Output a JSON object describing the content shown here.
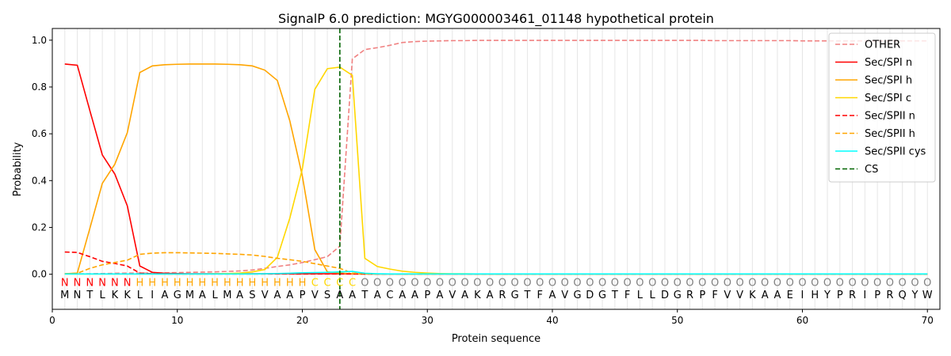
{
  "chart_data": {
    "type": "line",
    "title": "SignalP 6.0 prediction: MGYG000003461_01148 hypothetical protein",
    "xlabel": "Protein sequence",
    "ylabel": "Probability",
    "xlim": [
      0,
      71
    ],
    "ylim": [
      -0.15,
      1.05
    ],
    "xticks": [
      "0",
      "10",
      "20",
      "30",
      "40",
      "50",
      "60",
      "70"
    ],
    "yticks": [
      "0.0",
      "0.2",
      "0.4",
      "0.6",
      "0.8",
      "1.0"
    ],
    "grid": "vertical lines at each residue",
    "legend_position": "top-right",
    "sequence": "MNTLKKLIAGMALMASVAAPVSAATACAAPAVAKARGTFAVGDGTFLLDGRPFVVKAAEIHYPRIPRQYW",
    "region_labels": "NNNNNNHHHHHHHHHHHHHHCCCCOOOOOOOOOOOOOOOOOOOOOOOOOOOOOOOOOOOOOOOOOOOOOOOO",
    "region_colors": {
      "N": "#ff0000",
      "H": "#ffa500",
      "C": "#ffd700",
      "O": "#808080"
    },
    "cs_position": 23,
    "series": [
      {
        "name": "OTHER",
        "color": "#f08080",
        "dash": "dashed",
        "values": [
          0.002,
          0.002,
          0.002,
          0.003,
          0.004,
          0.005,
          0.005,
          0.005,
          0.006,
          0.007,
          0.008,
          0.009,
          0.01,
          0.012,
          0.014,
          0.018,
          0.025,
          0.033,
          0.04,
          0.05,
          0.062,
          0.075,
          0.12,
          0.92,
          0.96,
          0.968,
          0.978,
          0.99,
          0.994,
          0.996,
          0.997,
          0.998,
          0.998,
          0.999,
          0.999,
          0.999,
          0.999,
          0.999,
          0.999,
          0.999,
          0.999,
          0.999,
          0.999,
          0.999,
          0.999,
          0.999,
          0.999,
          0.999,
          0.999,
          0.999,
          0.999,
          0.999,
          0.998,
          0.998,
          0.998,
          0.998,
          0.998,
          0.998,
          0.998,
          0.997,
          0.997,
          0.997,
          0.997,
          0.997,
          0.997,
          0.997,
          0.997,
          0.997,
          0.997,
          0.997
        ]
      },
      {
        "name": "Sec/SPI n",
        "color": "#ff0000",
        "dash": "solid",
        "values": [
          0.898,
          0.893,
          0.7,
          0.51,
          0.428,
          0.292,
          0.035,
          0.008,
          0.004,
          0.003,
          0.002,
          0.002,
          0.002,
          0.002,
          0.002,
          0.002,
          0.002,
          0.002,
          0.002,
          0.002,
          0.002,
          0.002,
          0.002,
          0.001,
          0.001,
          0.001,
          0.001,
          0.001,
          0.001,
          0.001,
          0.001,
          0.001,
          0.001,
          0.001,
          0.001,
          0.001,
          0.001,
          0.001,
          0.001,
          0.001,
          0.001,
          0.001,
          0.001,
          0.001,
          0.001,
          0.001,
          0.001,
          0.001,
          0.001,
          0.001,
          0.001,
          0.001,
          0.001,
          0.001,
          0.001,
          0.001,
          0.001,
          0.001,
          0.001,
          0.001,
          0.001,
          0.001,
          0.001,
          0.001,
          0.001,
          0.001,
          0.001,
          0.001,
          0.001,
          0.001
        ]
      },
      {
        "name": "Sec/SPI h",
        "color": "#ffa500",
        "dash": "solid",
        "values": [
          0.002,
          0.005,
          0.195,
          0.388,
          0.47,
          0.605,
          0.862,
          0.89,
          0.895,
          0.897,
          0.898,
          0.898,
          0.898,
          0.897,
          0.895,
          0.89,
          0.872,
          0.828,
          0.655,
          0.42,
          0.105,
          0.01,
          0.005,
          0.002,
          0.001,
          0.001,
          0.001,
          0.001,
          0.001,
          0.001,
          0.001,
          0.001,
          0.001,
          0.001,
          0.001,
          0.001,
          0.001,
          0.001,
          0.001,
          0.001,
          0.001,
          0.001,
          0.001,
          0.001,
          0.001,
          0.001,
          0.001,
          0.001,
          0.001,
          0.001,
          0.001,
          0.001,
          0.001,
          0.001,
          0.001,
          0.001,
          0.001,
          0.001,
          0.001,
          0.001,
          0.001,
          0.001,
          0.001,
          0.001,
          0.001,
          0.001,
          0.001,
          0.001,
          0.001,
          0.001
        ]
      },
      {
        "name": "Sec/SPI c",
        "color": "#ffd700",
        "dash": "solid",
        "values": [
          0.001,
          0.001,
          0.001,
          0.001,
          0.001,
          0.001,
          0.001,
          0.001,
          0.001,
          0.001,
          0.001,
          0.001,
          0.002,
          0.003,
          0.005,
          0.01,
          0.02,
          0.072,
          0.24,
          0.45,
          0.79,
          0.878,
          0.885,
          0.85,
          0.068,
          0.033,
          0.022,
          0.013,
          0.008,
          0.005,
          0.003,
          0.002,
          0.002,
          0.001,
          0.001,
          0.001,
          0.001,
          0.001,
          0.001,
          0.001,
          0.001,
          0.001,
          0.001,
          0.001,
          0.001,
          0.001,
          0.001,
          0.001,
          0.001,
          0.001,
          0.001,
          0.001,
          0.001,
          0.001,
          0.001,
          0.001,
          0.001,
          0.001,
          0.001,
          0.001,
          0.001,
          0.001,
          0.001,
          0.001,
          0.001,
          0.001,
          0.001,
          0.001,
          0.001,
          0.001
        ]
      },
      {
        "name": "Sec/SPII n",
        "color": "#ff0000",
        "dash": "dashed",
        "values": [
          0.095,
          0.093,
          0.075,
          0.055,
          0.046,
          0.035,
          0.005,
          0.002,
          0.001,
          0.001,
          0.001,
          0.001,
          0.001,
          0.001,
          0.001,
          0.001,
          0.001,
          0.001,
          0.001,
          0.001,
          0.001,
          0.001,
          0.001,
          0.001,
          0.001,
          0.001,
          0.001,
          0.001,
          0.001,
          0.001,
          0.001,
          0.001,
          0.001,
          0.001,
          0.001,
          0.001,
          0.001,
          0.001,
          0.001,
          0.001,
          0.001,
          0.001,
          0.001,
          0.001,
          0.001,
          0.001,
          0.001,
          0.001,
          0.001,
          0.001,
          0.001,
          0.001,
          0.001,
          0.001,
          0.001,
          0.001,
          0.001,
          0.001,
          0.001,
          0.001,
          0.001,
          0.001,
          0.001,
          0.001,
          0.001,
          0.001,
          0.001,
          0.001,
          0.001,
          0.001
        ]
      },
      {
        "name": "Sec/SPII h",
        "color": "#ffa500",
        "dash": "dashed",
        "values": [
          0.002,
          0.004,
          0.025,
          0.04,
          0.05,
          0.06,
          0.085,
          0.09,
          0.092,
          0.092,
          0.091,
          0.09,
          0.089,
          0.087,
          0.085,
          0.082,
          0.076,
          0.068,
          0.062,
          0.055,
          0.045,
          0.035,
          0.025,
          0.005,
          0.002,
          0.001,
          0.001,
          0.001,
          0.001,
          0.001,
          0.001,
          0.001,
          0.001,
          0.001,
          0.001,
          0.001,
          0.001,
          0.001,
          0.001,
          0.001,
          0.001,
          0.001,
          0.001,
          0.001,
          0.001,
          0.001,
          0.001,
          0.001,
          0.001,
          0.001,
          0.001,
          0.001,
          0.001,
          0.001,
          0.001,
          0.001,
          0.001,
          0.001,
          0.001,
          0.001,
          0.001,
          0.001,
          0.001,
          0.001,
          0.001,
          0.001,
          0.001,
          0.001,
          0.001,
          0.001
        ]
      },
      {
        "name": "Sec/SPII cys",
        "color": "#00ffff",
        "dash": "solid",
        "values": [
          0.001,
          0.001,
          0.001,
          0.001,
          0.001,
          0.001,
          0.001,
          0.001,
          0.001,
          0.001,
          0.001,
          0.001,
          0.001,
          0.001,
          0.001,
          0.001,
          0.002,
          0.003,
          0.004,
          0.006,
          0.007,
          0.008,
          0.01,
          0.012,
          0.004,
          0.002,
          0.001,
          0.001,
          0.001,
          0.001,
          0.001,
          0.001,
          0.001,
          0.001,
          0.001,
          0.001,
          0.001,
          0.001,
          0.001,
          0.001,
          0.001,
          0.001,
          0.001,
          0.001,
          0.001,
          0.001,
          0.001,
          0.001,
          0.001,
          0.001,
          0.001,
          0.001,
          0.001,
          0.001,
          0.001,
          0.001,
          0.001,
          0.001,
          0.001,
          0.001,
          0.001,
          0.001,
          0.001,
          0.001,
          0.001,
          0.001,
          0.001,
          0.001,
          0.001,
          0.001
        ]
      }
    ],
    "cs_legend": {
      "name": "CS",
      "color": "#006400",
      "dash": "dashed"
    }
  }
}
